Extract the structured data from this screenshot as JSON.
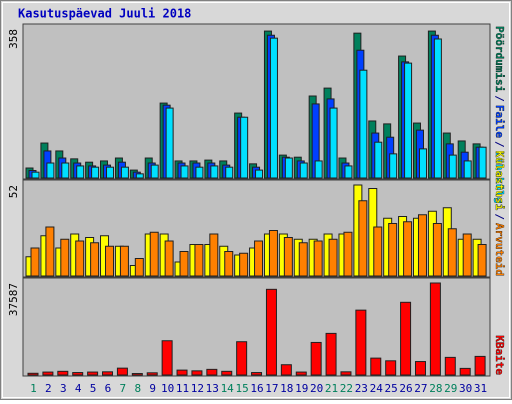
{
  "chart_data": [
    {
      "type": "grouped-bar",
      "title": "Kasutuspäevad Juuli 2018",
      "ylim": [
        0,
        358
      ],
      "yticks": [
        358
      ],
      "legend_separator": "/",
      "series": [
        {
          "name": "Pöördumisi",
          "color": "#00805c",
          "values": [
            24,
            84,
            65,
            46,
            38,
            41,
            48,
            19,
            48,
            180,
            41,
            41,
            43,
            41,
            156,
            34,
            353,
            55,
            50,
            197,
            216,
            48,
            348,
            137,
            130,
            293,
            132,
            353,
            108,
            89,
            82
          ]
        },
        {
          "name": "Faile",
          "color": "#0040ff",
          "values": [
            18,
            65,
            48,
            36,
            29,
            31,
            38,
            14,
            36,
            175,
            36,
            36,
            36,
            31,
            146,
            26,
            343,
            50,
            41,
            178,
            190,
            36,
            307,
            108,
            98,
            279,
            115,
            343,
            82,
            62,
            74
          ]
        },
        {
          "name": "Lehekülgi",
          "color": "#00e0ff",
          "values": [
            14,
            36,
            36,
            29,
            26,
            26,
            26,
            10,
            31,
            168,
            29,
            26,
            29,
            26,
            146,
            19,
            336,
            48,
            36,
            41,
            168,
            29,
            259,
            86,
            58,
            276,
            70,
            334,
            55,
            41,
            74
          ]
        }
      ]
    },
    {
      "type": "grouped-bar",
      "ylim": [
        0,
        52
      ],
      "yticks": [
        52
      ],
      "legend_separator": "/",
      "series": [
        {
          "name": "Külastusi",
          "color": "#ffff00",
          "values": [
            11,
            23,
            16,
            24,
            22,
            23,
            17,
            6,
            24,
            24,
            8,
            18,
            18,
            17,
            12,
            16,
            24,
            24,
            21,
            21,
            24,
            24,
            52,
            50,
            33,
            34,
            33,
            37,
            39,
            21,
            21
          ]
        },
        {
          "name": "Arvuteid",
          "color": "#ff8000",
          "values": [
            16,
            28,
            21,
            20,
            19,
            17,
            17,
            10,
            25,
            20,
            14,
            18,
            24,
            14,
            13,
            20,
            26,
            22,
            19,
            20,
            21,
            25,
            43,
            28,
            30,
            31,
            35,
            30,
            27,
            24,
            18
          ]
        }
      ]
    },
    {
      "type": "grouped-bar",
      "ylim": [
        0,
        37587
      ],
      "yticks": [
        37587
      ],
      "categories": [
        "1",
        "2",
        "3",
        "4",
        "5",
        "6",
        "7",
        "8",
        "9",
        "10",
        "11",
        "12",
        "13",
        "14",
        "15",
        "16",
        "17",
        "18",
        "19",
        "20",
        "21",
        "22",
        "23",
        "24",
        "25",
        "26",
        "27",
        "28",
        "29",
        "30",
        "31"
      ],
      "category_colors": [
        "#00805c",
        "#0000a0",
        "#0000a0",
        "#0000a0",
        "#0000a0",
        "#0000a0",
        "#00805c",
        "#00805c",
        "#0000a0",
        "#0000a0",
        "#0000a0",
        "#0000a0",
        "#0000a0",
        "#00805c",
        "#00805c",
        "#0000a0",
        "#0000a0",
        "#0000a0",
        "#0000a0",
        "#0000a0",
        "#00805c",
        "#00805c",
        "#0000a0",
        "#0000a0",
        "#0000a0",
        "#0000a0",
        "#0000a0",
        "#00805c",
        "#00805c",
        "#0000a0",
        "#0000a0"
      ],
      "series": [
        {
          "name": "KBaite",
          "color": "#ff0000",
          "values": [
            700,
            1200,
            1500,
            1000,
            1200,
            1300,
            2800,
            600,
            900,
            14000,
            2000,
            1700,
            2300,
            1500,
            13600,
            1000,
            35000,
            4200,
            1200,
            13300,
            17000,
            1300,
            26500,
            6900,
            5800,
            29700,
            5500,
            37587,
            7200,
            2700,
            7600
          ]
        }
      ]
    }
  ]
}
